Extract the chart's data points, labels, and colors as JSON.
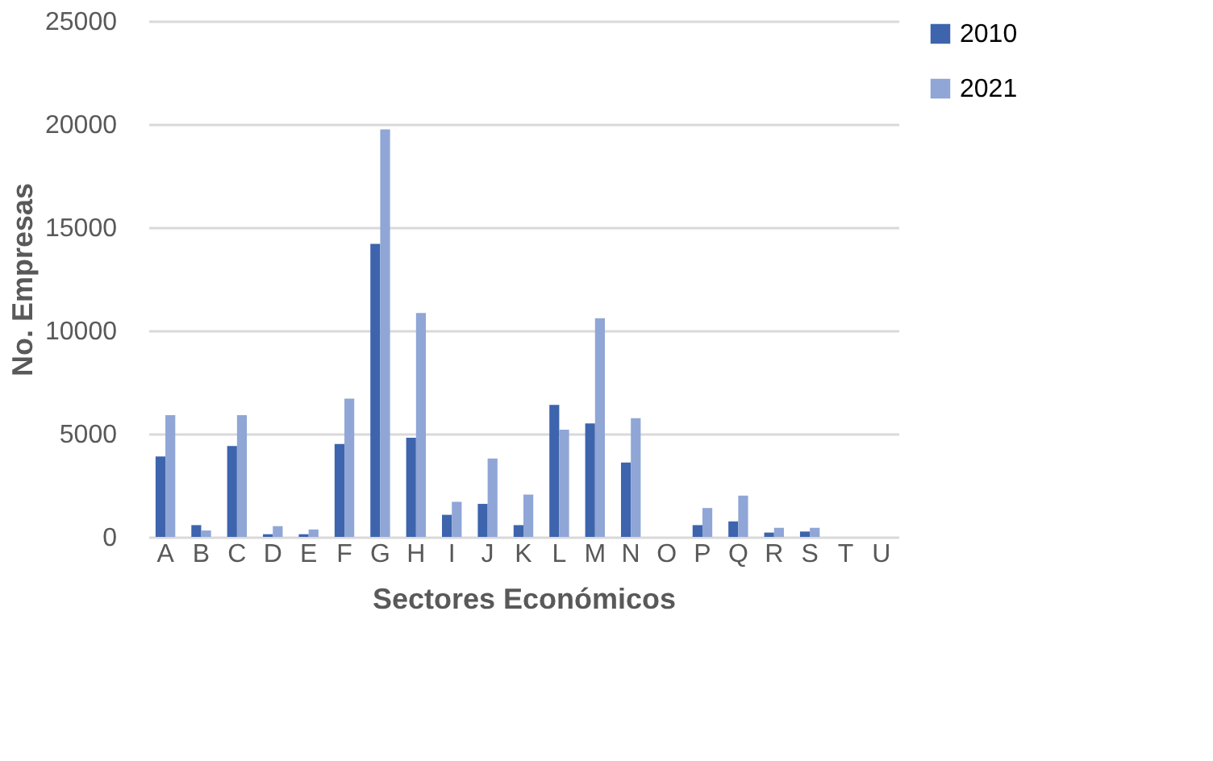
{
  "chart_data": {
    "type": "bar",
    "xlabel": "Sectores Económicos",
    "ylabel": "No. Empresas",
    "categories": [
      "A",
      "B",
      "C",
      "D",
      "E",
      "F",
      "G",
      "H",
      "I",
      "J",
      "K",
      "L",
      "M",
      "N",
      "O",
      "P",
      "Q",
      "R",
      "S",
      "T",
      "U"
    ],
    "series": [
      {
        "name": "2010",
        "color": "#3d64ad",
        "values": [
          3900,
          570,
          4400,
          130,
          130,
          4500,
          14200,
          4800,
          1070,
          1600,
          570,
          6400,
          5500,
          3600,
          0,
          570,
          750,
          210,
          260,
          0,
          0
        ]
      },
      {
        "name": "2021",
        "color": "#8fa6d6",
        "values": [
          5900,
          310,
          5900,
          520,
          360,
          6700,
          19750,
          10850,
          1700,
          3800,
          2050,
          5200,
          10600,
          5750,
          0,
          1400,
          2000,
          440,
          440,
          0,
          0
        ]
      }
    ],
    "ylim": [
      0,
      25000
    ],
    "yticks": [
      0,
      5000,
      10000,
      15000,
      20000,
      25000
    ],
    "grid": "y",
    "legend": "right"
  }
}
